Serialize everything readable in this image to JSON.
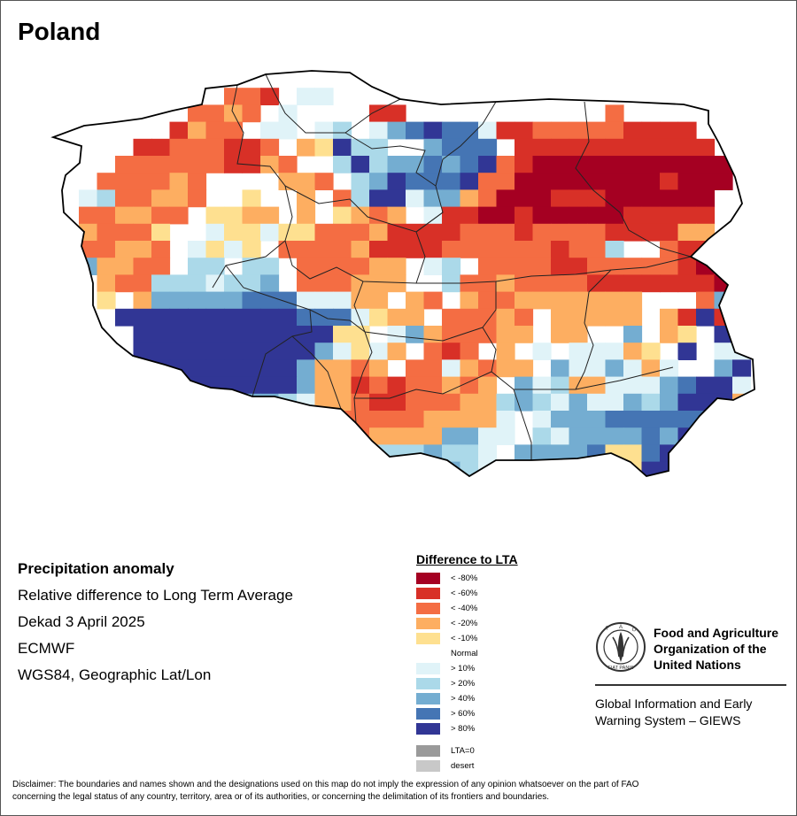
{
  "map": {
    "title": "Poland",
    "palette": {
      "lt80": "#a50022",
      "lt60": "#d83027",
      "lt40": "#f46d43",
      "lt20": "#fdae61",
      "lt10": "#fee090",
      "normal": "#ffffff",
      "gt10": "#e0f3f8",
      "gt20": "#abd9e9",
      "gt40": "#74add1",
      "gt60": "#4575b4",
      "gt80": "#313695"
    }
  },
  "info": {
    "heading": "Precipitation anomaly",
    "line1": "Relative difference to Long Term Average",
    "line2": "Dekad 3 April 2025",
    "line3": "ECMWF",
    "line4": "WGS84, Geographic Lat/Lon"
  },
  "legend": {
    "title": "Difference to LTA",
    "items": [
      {
        "label": "< -80%",
        "color": "#a50022"
      },
      {
        "label": "< -60%",
        "color": "#d83027"
      },
      {
        "label": "< -40%",
        "color": "#f46d43"
      },
      {
        "label": "< -20%",
        "color": "#fdae61"
      },
      {
        "label": "< -10%",
        "color": "#fee090"
      },
      {
        "label": "Normal",
        "color": "#ffffff"
      },
      {
        "label": "> 10%",
        "color": "#e0f3f8"
      },
      {
        "label": "> 20%",
        "color": "#abd9e9"
      },
      {
        "label": "> 40%",
        "color": "#74add1"
      },
      {
        "label": "> 60%",
        "color": "#4575b4"
      },
      {
        "label": "> 80%",
        "color": "#313695"
      }
    ],
    "extra": [
      {
        "label": "LTA=0",
        "color": "#9a9a9a"
      },
      {
        "label": "desert",
        "color": "#c8c8c8"
      }
    ]
  },
  "fao": {
    "name1": "Food and Agriculture",
    "name2": "Organization of the",
    "name3": "United Nations",
    "giews1": "Global Information and Early",
    "giews2": "Warning System – GIEWS",
    "logo_text": "FIAT PANIS"
  },
  "disclaimer": {
    "line1": "Disclaimer: The boundaries and names shown and the designations used on this map do not imply the expression of any opinion whatsoever on the part of FAO",
    "line2": "concerning the legal status of any country, territory, area or of its authorities, or concerning the delimitation of its frontiers and boundaries."
  }
}
